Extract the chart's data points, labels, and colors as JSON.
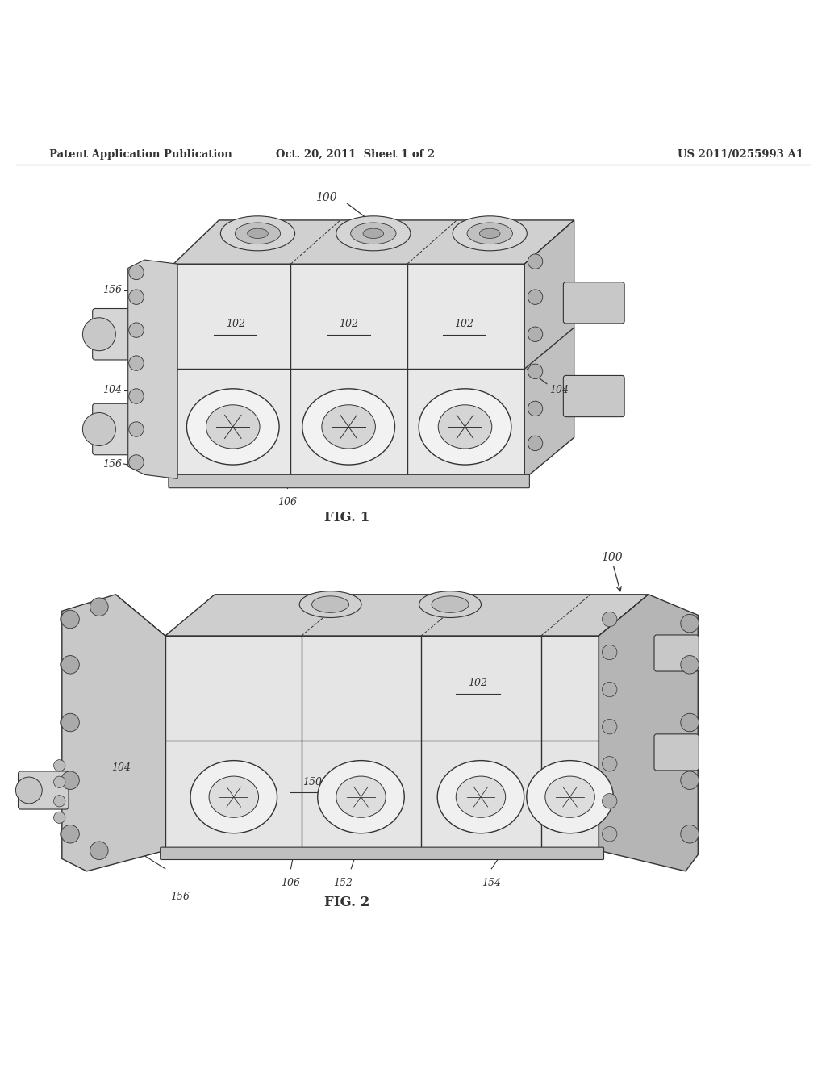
{
  "background_color": "#ffffff",
  "header_left": "Patent Application Publication",
  "header_mid": "Oct. 20, 2011  Sheet 1 of 2",
  "header_right": "US 2011/0255993 A1",
  "fig1_caption": "FIG. 1",
  "fig2_caption": "FIG. 2",
  "text_color": "#1a1a1a",
  "line_color": "#333333",
  "header_fontsize": 9.5,
  "caption_fontsize": 12,
  "label_fontsize": 9
}
